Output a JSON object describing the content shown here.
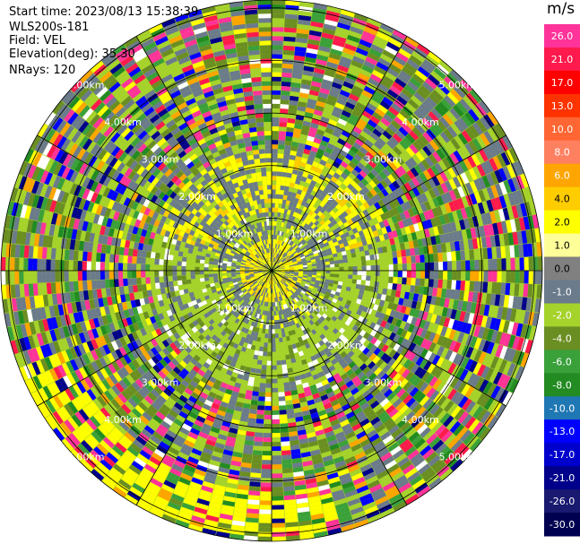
{
  "header": {
    "start_time": "Start time: 2023/08/13 15:38:39",
    "instrument": "WLS200s-181",
    "field": "Field: VEL",
    "elevation": "Elevation(deg): 35.30",
    "nrays": "NRays: 120"
  },
  "chart_data": {
    "type": "heatmap",
    "projection": "polar",
    "nrays": 120,
    "units": "m/s",
    "range_rings_km": [
      "1.00km",
      "2.00km",
      "3.00km",
      "4.00km",
      "5.00km"
    ],
    "range_ring_values": [
      1,
      2,
      3,
      4,
      5
    ],
    "colorbar": {
      "ticks": [
        "26.0",
        "21.0",
        "17.0",
        "13.0",
        "10.0",
        "8.0",
        "6.0",
        "4.0",
        "2.0",
        "1.0",
        "0.0",
        "-1.0",
        "-2.0",
        "-4.0",
        "-6.0",
        "-8.0",
        "-10.0",
        "-13.0",
        "-17.0",
        "-21.0",
        "-26.0",
        "-30.0"
      ],
      "colors": [
        "#ff3399",
        "#ff1a4d",
        "#ff0000",
        "#ff3300",
        "#ff6633",
        "#ff8060",
        "#ffa500",
        "#ffcc00",
        "#ffff00",
        "#ffff99",
        "#808080",
        "#6b7b8c",
        "#a6d22c",
        "#6b8e23",
        "#3aa03a",
        "#228b22",
        "#1f77b4",
        "#0000ff",
        "#0000cd",
        "#00008b",
        "#191970",
        "#000050"
      ]
    },
    "grid": true
  }
}
